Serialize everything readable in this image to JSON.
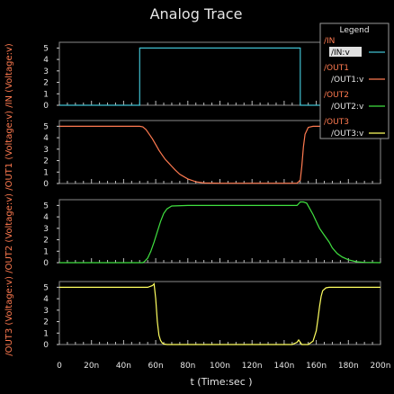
{
  "chart_data": {
    "type": "line",
    "title": "Analog Trace",
    "xlabel": "t (Time:sec )",
    "x_ticks": [
      "0",
      "20n",
      "40n",
      "60n",
      "80n",
      "100n",
      "120n",
      "140n",
      "160n",
      "180n",
      "200n"
    ],
    "xlim": [
      0,
      200
    ],
    "x_unit": "ns",
    "legend": {
      "title": "Legend",
      "placement": "top-right",
      "entries": [
        {
          "group": "/IN",
          "label": "/IN:v",
          "color": "#40c0d0",
          "selected": true
        },
        {
          "group": "/OUT1",
          "label": "/OUT1:v",
          "color": "#ff7a50",
          "selected": false
        },
        {
          "group": "/OUT2",
          "label": "/OUT2:v",
          "color": "#40e040",
          "selected": false
        },
        {
          "group": "/OUT3",
          "label": "/OUT3:v",
          "color": "#ffff60",
          "selected": false
        }
      ]
    },
    "panels": [
      {
        "ylabel": "/IN  (Voltage:v)",
        "ylabel_color": "#ff7a50",
        "y_ticks": [
          0,
          1,
          2,
          3,
          4,
          5
        ],
        "ylim": [
          0,
          5.5
        ],
        "series": [
          {
            "name": "/IN:v",
            "color": "#40c0d0",
            "x": [
              0,
              50,
              50,
              150,
              150,
              200
            ],
            "y": [
              0,
              0,
              5,
              5,
              0,
              0
            ]
          }
        ]
      },
      {
        "ylabel": "/OUT1  (Voltage:v)",
        "ylabel_color": "#ff7a50",
        "y_ticks": [
          0,
          1,
          2,
          3,
          4,
          5
        ],
        "ylim": [
          0,
          5.5
        ],
        "series": [
          {
            "name": "/OUT1:v",
            "color": "#ff7a50",
            "x": [
              0,
              50,
              52,
              54,
              56,
              58,
              60,
              62,
              64,
              66,
              68,
              70,
              72,
              75,
              80,
              85,
              90,
              100,
              120,
              148,
              150,
              151,
              152,
              153,
              155,
              158,
              160,
              200
            ],
            "y": [
              5.0,
              5.0,
              4.95,
              4.7,
              4.3,
              3.9,
              3.4,
              2.9,
              2.5,
              2.1,
              1.8,
              1.5,
              1.2,
              0.8,
              0.4,
              0.15,
              0.05,
              0.02,
              0.02,
              0.02,
              0.3,
              1.5,
              3.2,
              4.3,
              4.9,
              5.0,
              5.0,
              5.0
            ]
          }
        ]
      },
      {
        "ylabel": "/OUT2  (Voltage:v)",
        "ylabel_color": "#ff7a50",
        "y_ticks": [
          0,
          1,
          2,
          3,
          4,
          5
        ],
        "ylim": [
          0,
          5.5
        ],
        "series": [
          {
            "name": "/OUT2:v",
            "color": "#40e040",
            "x": [
              0,
              52,
              53,
              55,
              57,
              59,
              61,
              63,
              65,
              67,
              70,
              80,
              100,
              140,
              148,
              150,
              152,
              154,
              156,
              158,
              160,
              162,
              165,
              168,
              170,
              173,
              176,
              180,
              185,
              190,
              200
            ],
            "y": [
              0.0,
              0.0,
              0.1,
              0.4,
              1.0,
              1.8,
              2.7,
              3.6,
              4.3,
              4.7,
              4.95,
              5.0,
              5.0,
              5.0,
              5.0,
              5.3,
              5.3,
              5.2,
              4.7,
              4.2,
              3.6,
              3.0,
              2.4,
              1.8,
              1.3,
              0.8,
              0.5,
              0.25,
              0.08,
              0.02,
              0.0
            ]
          }
        ]
      },
      {
        "ylabel": "/OUT3  (Voltage:v)",
        "ylabel_color": "#ff7a50",
        "y_ticks": [
          0,
          1,
          2,
          3,
          4,
          5
        ],
        "ylim": [
          0,
          5.5
        ],
        "series": [
          {
            "name": "/OUT3:v",
            "color": "#ffff60",
            "x": [
              0,
              55,
              58,
              59,
              60,
              61,
              62,
              63,
              64,
              65,
              67,
              70,
              80,
              100,
              145,
              148,
              149,
              150,
              151,
              152,
              155,
              158,
              160,
              161,
              162,
              163,
              164,
              166,
              168,
              170,
              200
            ],
            "y": [
              5.0,
              5.0,
              5.15,
              5.3,
              4.0,
              2.0,
              0.8,
              0.35,
              0.15,
              0.05,
              0.0,
              0.0,
              0.0,
              0.0,
              0.0,
              0.2,
              0.4,
              0.2,
              0.0,
              0.0,
              0.0,
              0.3,
              1.2,
              2.2,
              3.3,
              4.2,
              4.7,
              4.95,
              5.0,
              5.0,
              5.0
            ]
          }
        ]
      }
    ]
  }
}
